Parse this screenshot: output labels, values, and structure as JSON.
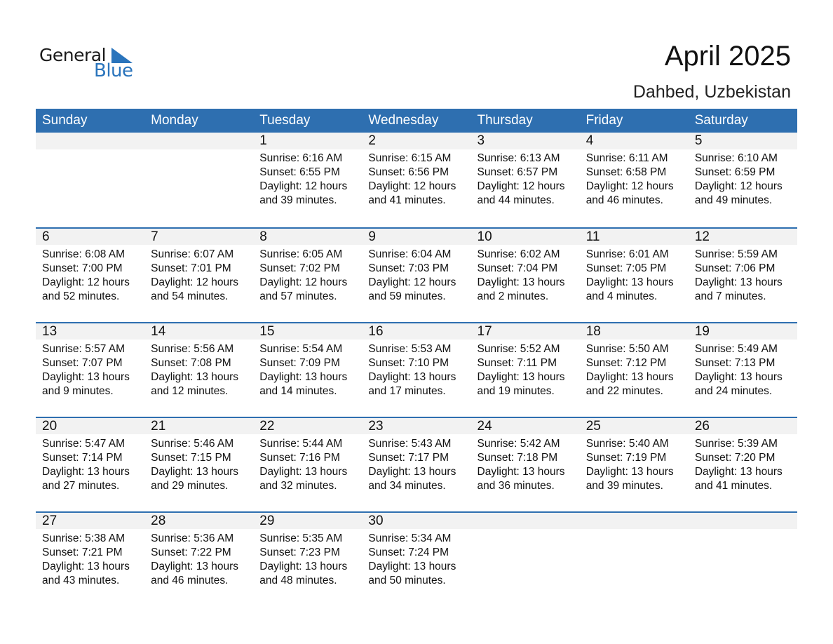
{
  "logo": {
    "line1": "General",
    "line2": "Blue",
    "color": "#2a74bc"
  },
  "title": "April 2025",
  "location": "Dahbed, Uzbekistan",
  "colors": {
    "header": "#2e6fb0",
    "band": "#f2f2f2"
  },
  "weekdays": [
    "Sunday",
    "Monday",
    "Tuesday",
    "Wednesday",
    "Thursday",
    "Friday",
    "Saturday"
  ],
  "first_weekday_index": 2,
  "days": [
    {
      "day": "1",
      "sunrise": "Sunrise: 6:16 AM",
      "sunset": "Sunset: 6:55 PM",
      "daylight1": "Daylight: 12 hours",
      "daylight2": "and 39 minutes."
    },
    {
      "day": "2",
      "sunrise": "Sunrise: 6:15 AM",
      "sunset": "Sunset: 6:56 PM",
      "daylight1": "Daylight: 12 hours",
      "daylight2": "and 41 minutes."
    },
    {
      "day": "3",
      "sunrise": "Sunrise: 6:13 AM",
      "sunset": "Sunset: 6:57 PM",
      "daylight1": "Daylight: 12 hours",
      "daylight2": "and 44 minutes."
    },
    {
      "day": "4",
      "sunrise": "Sunrise: 6:11 AM",
      "sunset": "Sunset: 6:58 PM",
      "daylight1": "Daylight: 12 hours",
      "daylight2": "and 46 minutes."
    },
    {
      "day": "5",
      "sunrise": "Sunrise: 6:10 AM",
      "sunset": "Sunset: 6:59 PM",
      "daylight1": "Daylight: 12 hours",
      "daylight2": "and 49 minutes."
    },
    {
      "day": "6",
      "sunrise": "Sunrise: 6:08 AM",
      "sunset": "Sunset: 7:00 PM",
      "daylight1": "Daylight: 12 hours",
      "daylight2": "and 52 minutes."
    },
    {
      "day": "7",
      "sunrise": "Sunrise: 6:07 AM",
      "sunset": "Sunset: 7:01 PM",
      "daylight1": "Daylight: 12 hours",
      "daylight2": "and 54 minutes."
    },
    {
      "day": "8",
      "sunrise": "Sunrise: 6:05 AM",
      "sunset": "Sunset: 7:02 PM",
      "daylight1": "Daylight: 12 hours",
      "daylight2": "and 57 minutes."
    },
    {
      "day": "9",
      "sunrise": "Sunrise: 6:04 AM",
      "sunset": "Sunset: 7:03 PM",
      "daylight1": "Daylight: 12 hours",
      "daylight2": "and 59 minutes."
    },
    {
      "day": "10",
      "sunrise": "Sunrise: 6:02 AM",
      "sunset": "Sunset: 7:04 PM",
      "daylight1": "Daylight: 13 hours",
      "daylight2": "and 2 minutes."
    },
    {
      "day": "11",
      "sunrise": "Sunrise: 6:01 AM",
      "sunset": "Sunset: 7:05 PM",
      "daylight1": "Daylight: 13 hours",
      "daylight2": "and 4 minutes."
    },
    {
      "day": "12",
      "sunrise": "Sunrise: 5:59 AM",
      "sunset": "Sunset: 7:06 PM",
      "daylight1": "Daylight: 13 hours",
      "daylight2": "and 7 minutes."
    },
    {
      "day": "13",
      "sunrise": "Sunrise: 5:57 AM",
      "sunset": "Sunset: 7:07 PM",
      "daylight1": "Daylight: 13 hours",
      "daylight2": "and 9 minutes."
    },
    {
      "day": "14",
      "sunrise": "Sunrise: 5:56 AM",
      "sunset": "Sunset: 7:08 PM",
      "daylight1": "Daylight: 13 hours",
      "daylight2": "and 12 minutes."
    },
    {
      "day": "15",
      "sunrise": "Sunrise: 5:54 AM",
      "sunset": "Sunset: 7:09 PM",
      "daylight1": "Daylight: 13 hours",
      "daylight2": "and 14 minutes."
    },
    {
      "day": "16",
      "sunrise": "Sunrise: 5:53 AM",
      "sunset": "Sunset: 7:10 PM",
      "daylight1": "Daylight: 13 hours",
      "daylight2": "and 17 minutes."
    },
    {
      "day": "17",
      "sunrise": "Sunrise: 5:52 AM",
      "sunset": "Sunset: 7:11 PM",
      "daylight1": "Daylight: 13 hours",
      "daylight2": "and 19 minutes."
    },
    {
      "day": "18",
      "sunrise": "Sunrise: 5:50 AM",
      "sunset": "Sunset: 7:12 PM",
      "daylight1": "Daylight: 13 hours",
      "daylight2": "and 22 minutes."
    },
    {
      "day": "19",
      "sunrise": "Sunrise: 5:49 AM",
      "sunset": "Sunset: 7:13 PM",
      "daylight1": "Daylight: 13 hours",
      "daylight2": "and 24 minutes."
    },
    {
      "day": "20",
      "sunrise": "Sunrise: 5:47 AM",
      "sunset": "Sunset: 7:14 PM",
      "daylight1": "Daylight: 13 hours",
      "daylight2": "and 27 minutes."
    },
    {
      "day": "21",
      "sunrise": "Sunrise: 5:46 AM",
      "sunset": "Sunset: 7:15 PM",
      "daylight1": "Daylight: 13 hours",
      "daylight2": "and 29 minutes."
    },
    {
      "day": "22",
      "sunrise": "Sunrise: 5:44 AM",
      "sunset": "Sunset: 7:16 PM",
      "daylight1": "Daylight: 13 hours",
      "daylight2": "and 32 minutes."
    },
    {
      "day": "23",
      "sunrise": "Sunrise: 5:43 AM",
      "sunset": "Sunset: 7:17 PM",
      "daylight1": "Daylight: 13 hours",
      "daylight2": "and 34 minutes."
    },
    {
      "day": "24",
      "sunrise": "Sunrise: 5:42 AM",
      "sunset": "Sunset: 7:18 PM",
      "daylight1": "Daylight: 13 hours",
      "daylight2": "and 36 minutes."
    },
    {
      "day": "25",
      "sunrise": "Sunrise: 5:40 AM",
      "sunset": "Sunset: 7:19 PM",
      "daylight1": "Daylight: 13 hours",
      "daylight2": "and 39 minutes."
    },
    {
      "day": "26",
      "sunrise": "Sunrise: 5:39 AM",
      "sunset": "Sunset: 7:20 PM",
      "daylight1": "Daylight: 13 hours",
      "daylight2": "and 41 minutes."
    },
    {
      "day": "27",
      "sunrise": "Sunrise: 5:38 AM",
      "sunset": "Sunset: 7:21 PM",
      "daylight1": "Daylight: 13 hours",
      "daylight2": "and 43 minutes."
    },
    {
      "day": "28",
      "sunrise": "Sunrise: 5:36 AM",
      "sunset": "Sunset: 7:22 PM",
      "daylight1": "Daylight: 13 hours",
      "daylight2": "and 46 minutes."
    },
    {
      "day": "29",
      "sunrise": "Sunrise: 5:35 AM",
      "sunset": "Sunset: 7:23 PM",
      "daylight1": "Daylight: 13 hours",
      "daylight2": "and 48 minutes."
    },
    {
      "day": "30",
      "sunrise": "Sunrise: 5:34 AM",
      "sunset": "Sunset: 7:24 PM",
      "daylight1": "Daylight: 13 hours",
      "daylight2": "and 50 minutes."
    }
  ]
}
